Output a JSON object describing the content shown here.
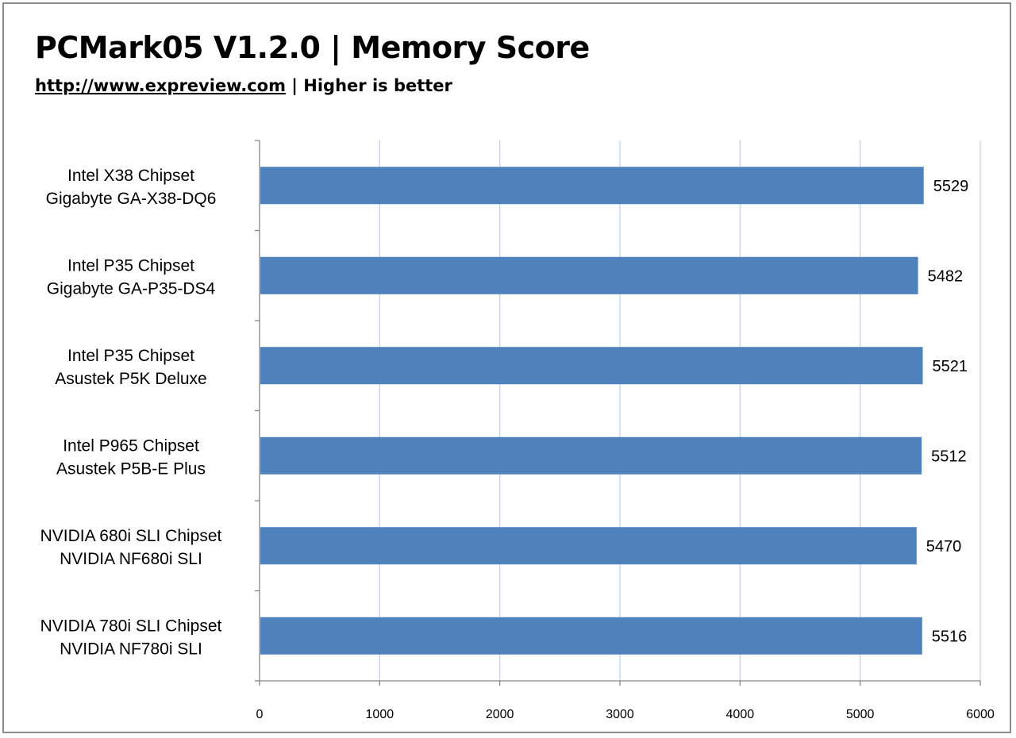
{
  "chart_data": {
    "type": "bar",
    "orientation": "horizontal",
    "title": "PCMark05 V1.2.0 | Memory Score",
    "subtitle_url": "http://www.expreview.com",
    "subtitle_text": "| Higher is better",
    "categories": [
      [
        "Intel X38 Chipset",
        "Gigabyte GA-X38-DQ6"
      ],
      [
        "Intel P35 Chipset",
        "Gigabyte GA-P35-DS4"
      ],
      [
        "Intel P35 Chipset",
        "Asustek P5K Deluxe"
      ],
      [
        "Intel P965 Chipset",
        "Asustek P5B-E Plus"
      ],
      [
        "NVIDIA 680i SLI  Chipset",
        "NVIDIA NF680i SLI"
      ],
      [
        "NVIDIA 780i SLI  Chipset",
        "NVIDIA NF780i SLI"
      ]
    ],
    "values": [
      5529,
      5482,
      5521,
      5512,
      5470,
      5516
    ],
    "xlim": [
      0,
      6000
    ],
    "xticks": [
      0,
      1000,
      2000,
      3000,
      4000,
      5000,
      6000
    ],
    "grid": "vertical",
    "legend": "none",
    "bar_color": "#4f81bd",
    "grid_color": "#c5d3e8"
  }
}
